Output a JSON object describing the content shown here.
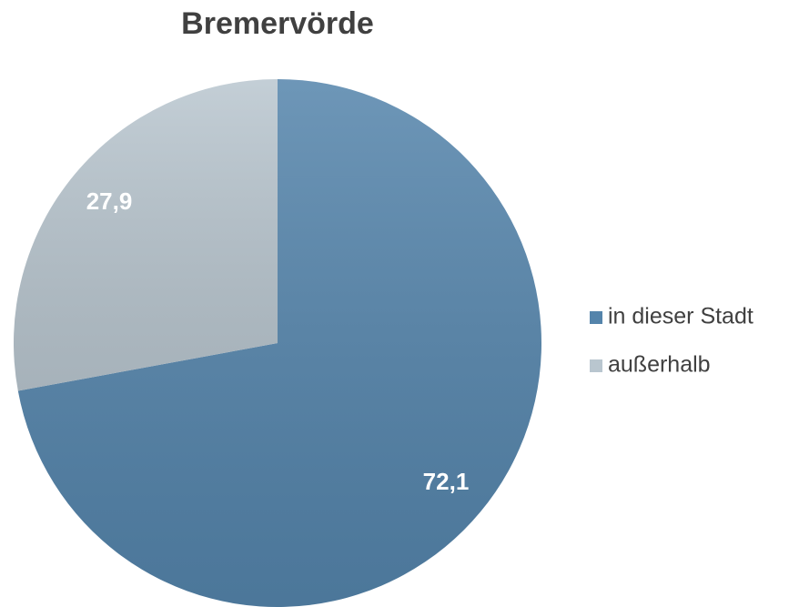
{
  "chart_data": {
    "type": "pie",
    "title": "Bremervörde",
    "categories": [
      "in dieser Stadt",
      "außerhalb"
    ],
    "values": [
      72.1,
      27.9
    ],
    "value_labels": [
      "72,1",
      "27,9"
    ],
    "colors": [
      "#5484ab",
      "#b9c6cf"
    ],
    "legend": "right"
  }
}
